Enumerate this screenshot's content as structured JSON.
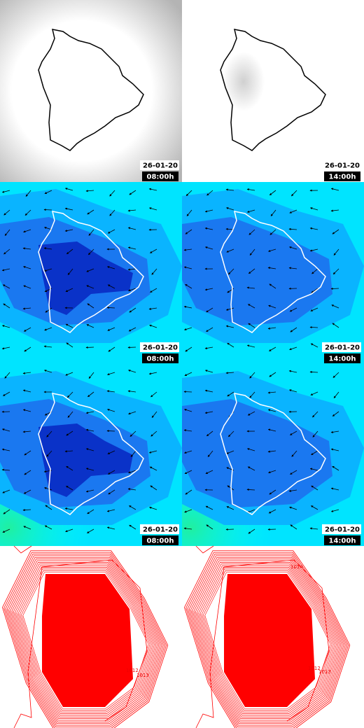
{
  "panels": [
    {
      "date": "26-01-20",
      "time": "08:00h"
    },
    {
      "date": "26-01-20",
      "time": "14:00h"
    },
    {
      "date": "26-01-20",
      "time": "08:00h"
    },
    {
      "date": "26-01-20",
      "time": "14:00h"
    },
    {
      "date": "26-01-20",
      "time": "08:00h"
    },
    {
      "date": "26-01-20",
      "time": "14:00h"
    },
    {
      "isobar_labels": [
        "1012",
        "1013"
      ]
    },
    {
      "isobar_labels": [
        "1014",
        "1012",
        "1013"
      ]
    }
  ]
}
